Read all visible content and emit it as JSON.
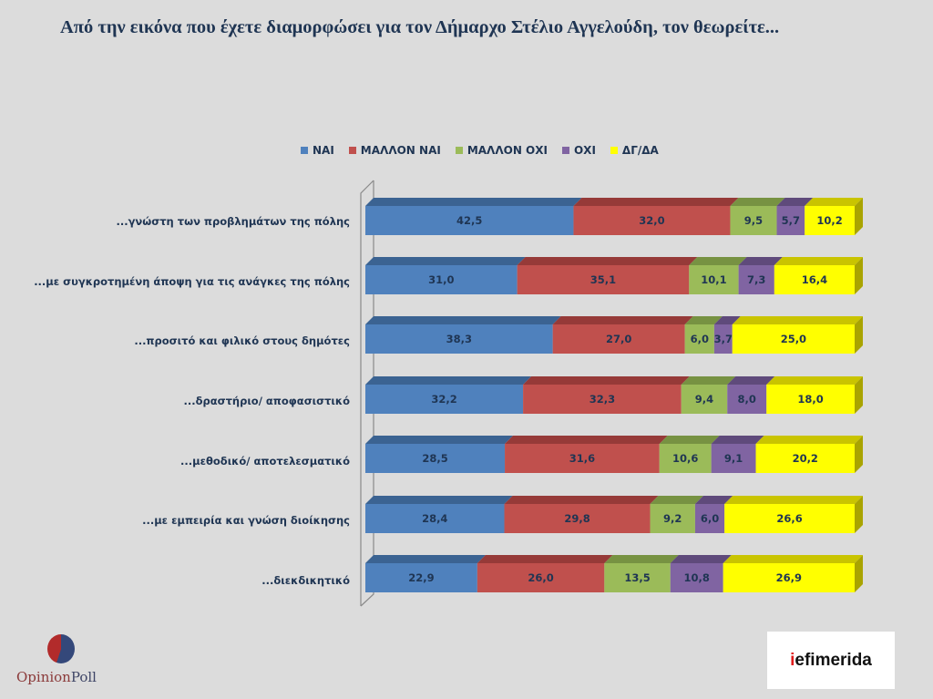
{
  "chart_data": {
    "type": "bar",
    "orientation": "horizontal",
    "stacked": true,
    "title": "Από την εικόνα που έχετε διαμορφώσει για τον Δήμαρχο Στέλιο Αγγελούδη, τον θεωρείτε...",
    "legend_position": "top",
    "xlim": [
      0,
      100
    ],
    "categories": [
      "...γνώστη των προβλημάτων της πόλης",
      "...με συγκροτημένη άποψη για τις ανάγκες της πόλης",
      "...προσιτό και φιλικό στους δημότες",
      "...δραστήριο/ αποφασιστικό",
      "...μεθοδικό/ αποτελεσματικό",
      "...με εμπειρία και γνώση διοίκησης",
      "...διεκδικητικό"
    ],
    "series": [
      {
        "name": "ΝΑΙ",
        "color": "#4f81bd",
        "top": "#3b6392",
        "labels": [
          "42,5",
          "31,0",
          "38,3",
          "32,2",
          "28,5",
          "28,4",
          "22,9"
        ],
        "values": [
          42.5,
          31.0,
          38.3,
          32.2,
          28.5,
          28.4,
          22.9
        ]
      },
      {
        "name": "ΜΑΛΛΟΝ ΝΑΙ",
        "color": "#c0504d",
        "top": "#963a38",
        "labels": [
          "32,0",
          "35,1",
          "27,0",
          "32,3",
          "31,6",
          "29,8",
          "26,0"
        ],
        "values": [
          32.0,
          35.1,
          27.0,
          32.3,
          31.6,
          29.8,
          26.0
        ]
      },
      {
        "name": "ΜΑΛΛΟΝ ΟΧΙ",
        "color": "#9bbb59",
        "top": "#779242",
        "labels": [
          "9,5",
          "10,1",
          "6,0",
          "9,4",
          "10,6",
          "9,2",
          "13,5"
        ],
        "values": [
          9.5,
          10.1,
          6.0,
          9.4,
          10.6,
          9.2,
          13.5
        ]
      },
      {
        "name": "ΟΧΙ",
        "color": "#8064a2",
        "top": "#5f4a7b",
        "labels": [
          "5,7",
          "7,3",
          "3,7",
          "8,0",
          "9,1",
          "6,0",
          "10,8"
        ],
        "values": [
          5.7,
          7.3,
          3.7,
          8.0,
          9.1,
          6.0,
          10.8
        ]
      },
      {
        "name": "ΔΓ/ΔΑ",
        "color": "#ffff00",
        "top": "#c9c400",
        "labels": [
          "10,2",
          "16,4",
          "25,0",
          "18,0",
          "20,2",
          "26,6",
          "26,9"
        ],
        "values": [
          10.2,
          16.4,
          25.0,
          18.0,
          20.2,
          26.6,
          26.9
        ]
      }
    ]
  },
  "logos": {
    "opinionpoll_part1": "Opinion",
    "opinionpoll_part2": "Poll",
    "iefimerida_part1": "i",
    "iefimerida_part2": "efimerida"
  }
}
